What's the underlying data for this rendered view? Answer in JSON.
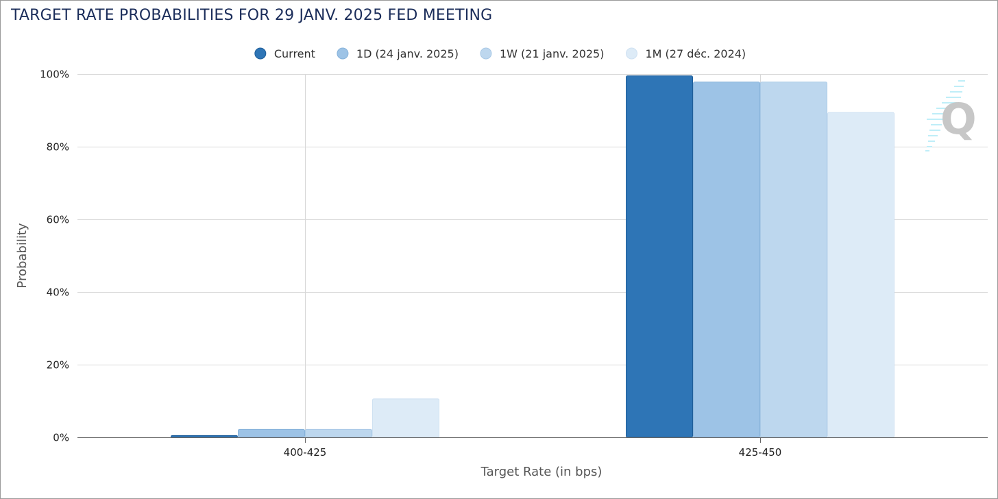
{
  "chart_data": {
    "type": "bar",
    "title": "TARGET RATE PROBABILITIES FOR 29 JANV. 2025 FED MEETING",
    "xlabel": "Target Rate (in bps)",
    "ylabel": "Probability",
    "categories": [
      "400-425",
      "425-450"
    ],
    "ylim": [
      0,
      100
    ],
    "yticks": [
      0,
      20,
      40,
      60,
      80,
      100
    ],
    "ytick_suffix": "%",
    "grid": true,
    "legend_position": "top-center",
    "series": [
      {
        "name": "Current",
        "color": "#2e75b6",
        "stroke": "#1f5e99",
        "values": [
          0.5,
          99.5
        ]
      },
      {
        "name": "1D (24 janv. 2025)",
        "color": "#9dc3e6",
        "stroke": "#86b2da",
        "values": [
          2.2,
          97.8
        ]
      },
      {
        "name": "1W (21 janv. 2025)",
        "color": "#bdd7ee",
        "stroke": "#a9c9e6",
        "values": [
          2.2,
          97.8
        ]
      },
      {
        "name": "1M (27 déc. 2024)",
        "color": "#ddebf7",
        "stroke": "#cfe1f2",
        "values": [
          10.6,
          89.4
        ]
      }
    ]
  }
}
